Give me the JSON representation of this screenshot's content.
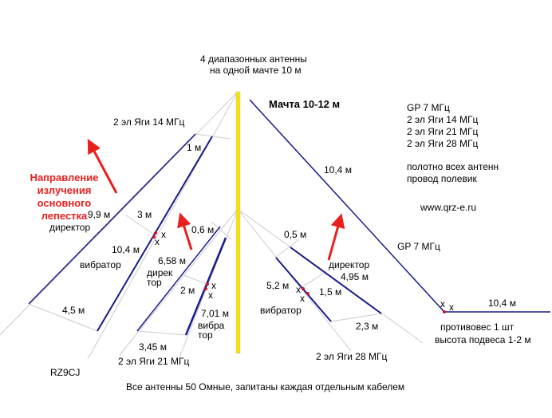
{
  "title_line1": "4 диапазонных антенны",
  "title_line2": "на одной мачте 10 м",
  "mast_label": "Мачта 10-12 м",
  "legend": [
    "GP 7 МГц",
    "2 эл Яги 14 МГц",
    "2 эл Яги 21 МГц",
    "2 эл Яги 28 МГц"
  ],
  "wire_note_line1": "полотно всех антенн",
  "wire_note_line2": "провод полевик",
  "website": "www.qrz-e.ru",
  "direction_label": [
    "Направление",
    "излучения",
    "основного",
    "лепестка"
  ],
  "yagi14": {
    "title": "2 эл Яги 14 МГц",
    "spacing_top": "1 м",
    "director_len": "9,9 м",
    "spacing_mid": "3 м",
    "director": "директор",
    "vibrator_len": "10,4 м",
    "vibrator": "вибратор",
    "spacing_bottom": "4,5 м"
  },
  "yagi21": {
    "title": "2 эл Яги 21 МГц",
    "spacing_top": "0,6 м",
    "director_len": "6,58 м",
    "director": [
      "дирек",
      "тор"
    ],
    "spacing_mid": "2 м",
    "vibrator_len": "7,01 м",
    "vibrator": [
      "вибра",
      "тор"
    ],
    "spacing_bottom": "3,45 м"
  },
  "yagi28": {
    "title": "2 эл Яги 28 МГц",
    "spacing_top": "0,5 м",
    "director": "директор",
    "director_len": "4,95 м",
    "vibrator_len": "5,2 м",
    "spacing_mid": "1,5 м",
    "vibrator": "вибратор",
    "spacing_bottom": "2,3 м"
  },
  "gp": {
    "label": "GP 7 МГц",
    "radiator_len": "10,4 м",
    "counterpoise_len": "10,4 м",
    "counterpoise_note": "противовес  1 шт",
    "height_note": "высота подвеса 1-2 м"
  },
  "feed_mark": "x",
  "author": "RZ9CJ",
  "footer": "Все антенны 50 Омные, запитаны каждая отдельным кабелем",
  "colors": {
    "element": "#1a1a8c",
    "arrow": "#e8201e",
    "mast": "#f5e600",
    "guy": "#c8c8c8"
  }
}
